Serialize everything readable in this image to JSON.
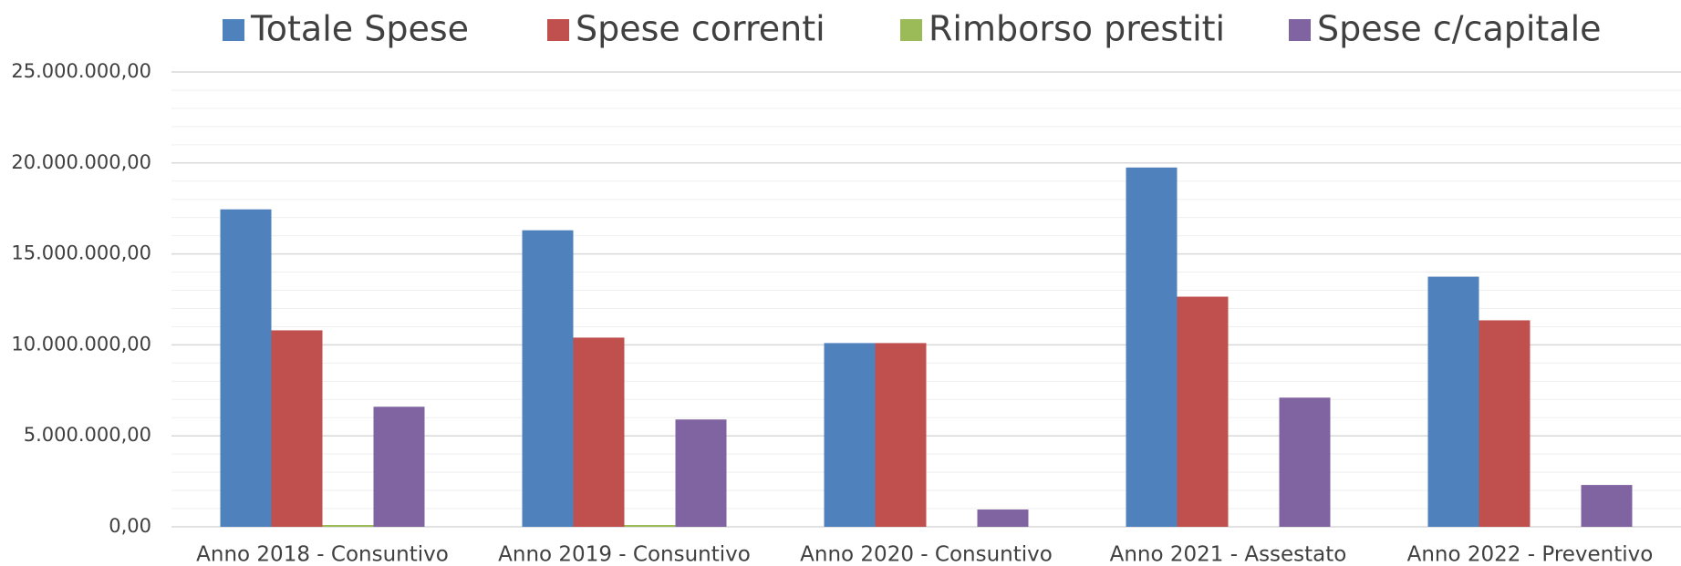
{
  "chart_data": {
    "type": "bar",
    "categories": [
      "Anno 2018 - Consuntivo",
      "Anno 2019 - Consuntivo",
      "Anno 2020 - Consuntivo",
      "Anno 2021 - Assestato",
      "Anno 2022 - Preventivo"
    ],
    "series": [
      {
        "name": "Totale Spese",
        "color": "#4f81bd",
        "values": [
          17450000,
          16300000,
          10100000,
          19750000,
          13750000
        ]
      },
      {
        "name": "Spese correnti",
        "color": "#c0504d",
        "values": [
          10800000,
          10400000,
          10100000,
          12650000,
          11350000
        ]
      },
      {
        "name": "Rimborso prestiti",
        "color": "#9bbb59",
        "values": [
          100000,
          100000,
          0,
          0,
          0
        ]
      },
      {
        "name": "Spese c/capitale",
        "color": "#8064a2",
        "values": [
          6600000,
          5900000,
          950000,
          7100000,
          2300000
        ]
      }
    ],
    "ylim": [
      0,
      25000000
    ],
    "yticks": [
      {
        "value": 0,
        "label": "0,00"
      },
      {
        "value": 5000000,
        "label": "5.000.000,00"
      },
      {
        "value": 10000000,
        "label": "10.000.000,00"
      },
      {
        "value": 15000000,
        "label": "15.000.000,00"
      },
      {
        "value": 20000000,
        "label": "20.000.000,00"
      },
      {
        "value": 25000000,
        "label": "25.000.000,00"
      }
    ],
    "minor_yticks": [
      1000000,
      2000000,
      3000000,
      4000000,
      6000000,
      7000000,
      8000000,
      9000000,
      11000000,
      12000000,
      13000000,
      14000000,
      16000000,
      17000000,
      18000000,
      19000000,
      21000000,
      22000000,
      23000000,
      24000000
    ],
    "grid": true,
    "legend": "top"
  }
}
